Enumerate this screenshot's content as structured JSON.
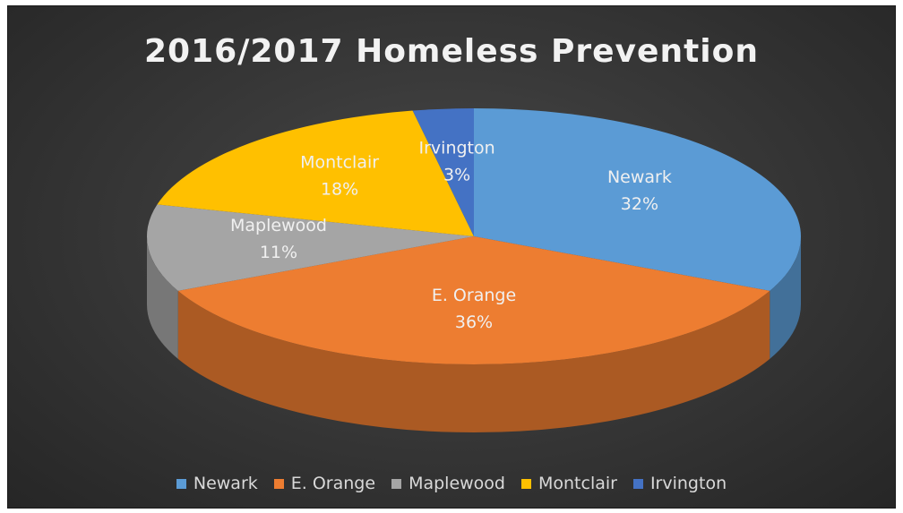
{
  "chart_data": {
    "type": "pie",
    "title": "2016/2017 Homeless Prevention",
    "slices": [
      {
        "name": "Newark",
        "value": 32,
        "label": "32%",
        "color": "#5b9bd5"
      },
      {
        "name": "E. Orange",
        "value": 36,
        "label": "36%",
        "color": "#ed7d31"
      },
      {
        "name": "Maplewood",
        "value": 11,
        "label": "11%",
        "color": "#a5a5a5"
      },
      {
        "name": "Montclair",
        "value": 18,
        "label": "18%",
        "color": "#ffc000"
      },
      {
        "name": "Irvington",
        "value": 3,
        "label": "3%",
        "color": "#4472c4"
      }
    ],
    "legend_position": "bottom",
    "style": "3d-pie"
  }
}
